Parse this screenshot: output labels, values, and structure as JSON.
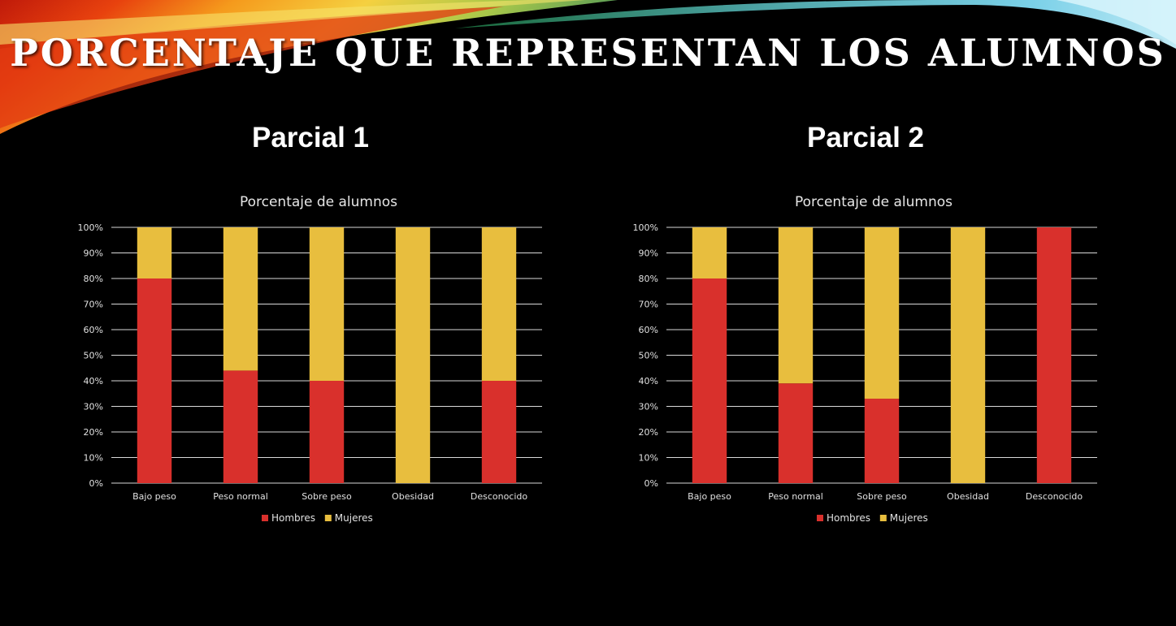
{
  "slide": {
    "title": "Porcentaje que representan los alumnos"
  },
  "colors": {
    "background": "#000000",
    "hombres": "#D9302C",
    "mujeres": "#E8BE3E",
    "gridline": "#d9d9d9"
  },
  "panels": [
    {
      "heading": "Parcial 1"
    },
    {
      "heading": "Parcial 2"
    }
  ],
  "chart_data": [
    {
      "type": "bar",
      "stacked": "percent",
      "title": "Porcentaje de alumnos",
      "categories": [
        "Bajo peso",
        "Peso normal",
        "Sobre peso",
        "Obesidad",
        "Desconocido"
      ],
      "series": [
        {
          "name": "Hombres",
          "color": "#D9302C",
          "values": [
            80,
            44,
            40,
            0,
            40
          ]
        },
        {
          "name": "Mujeres",
          "color": "#E8BE3E",
          "values": [
            20,
            56,
            60,
            100,
            60
          ]
        }
      ],
      "ylim": [
        0,
        100
      ],
      "yticks": [
        "0%",
        "10%",
        "20%",
        "30%",
        "40%",
        "50%",
        "60%",
        "70%",
        "80%",
        "90%",
        "100%"
      ],
      "grid": true,
      "legend": "bottom"
    },
    {
      "type": "bar",
      "stacked": "percent",
      "title": "Porcentaje de alumnos",
      "categories": [
        "Bajo peso",
        "Peso normal",
        "Sobre peso",
        "Obesidad",
        "Desconocido"
      ],
      "series": [
        {
          "name": "Hombres",
          "color": "#D9302C",
          "values": [
            80,
            39,
            33,
            0,
            100
          ]
        },
        {
          "name": "Mujeres",
          "color": "#E8BE3E",
          "values": [
            20,
            61,
            67,
            100,
            0
          ]
        }
      ],
      "ylim": [
        0,
        100
      ],
      "yticks": [
        "0%",
        "10%",
        "20%",
        "30%",
        "40%",
        "50%",
        "60%",
        "70%",
        "80%",
        "90%",
        "100%"
      ],
      "grid": true,
      "legend": "bottom"
    }
  ]
}
